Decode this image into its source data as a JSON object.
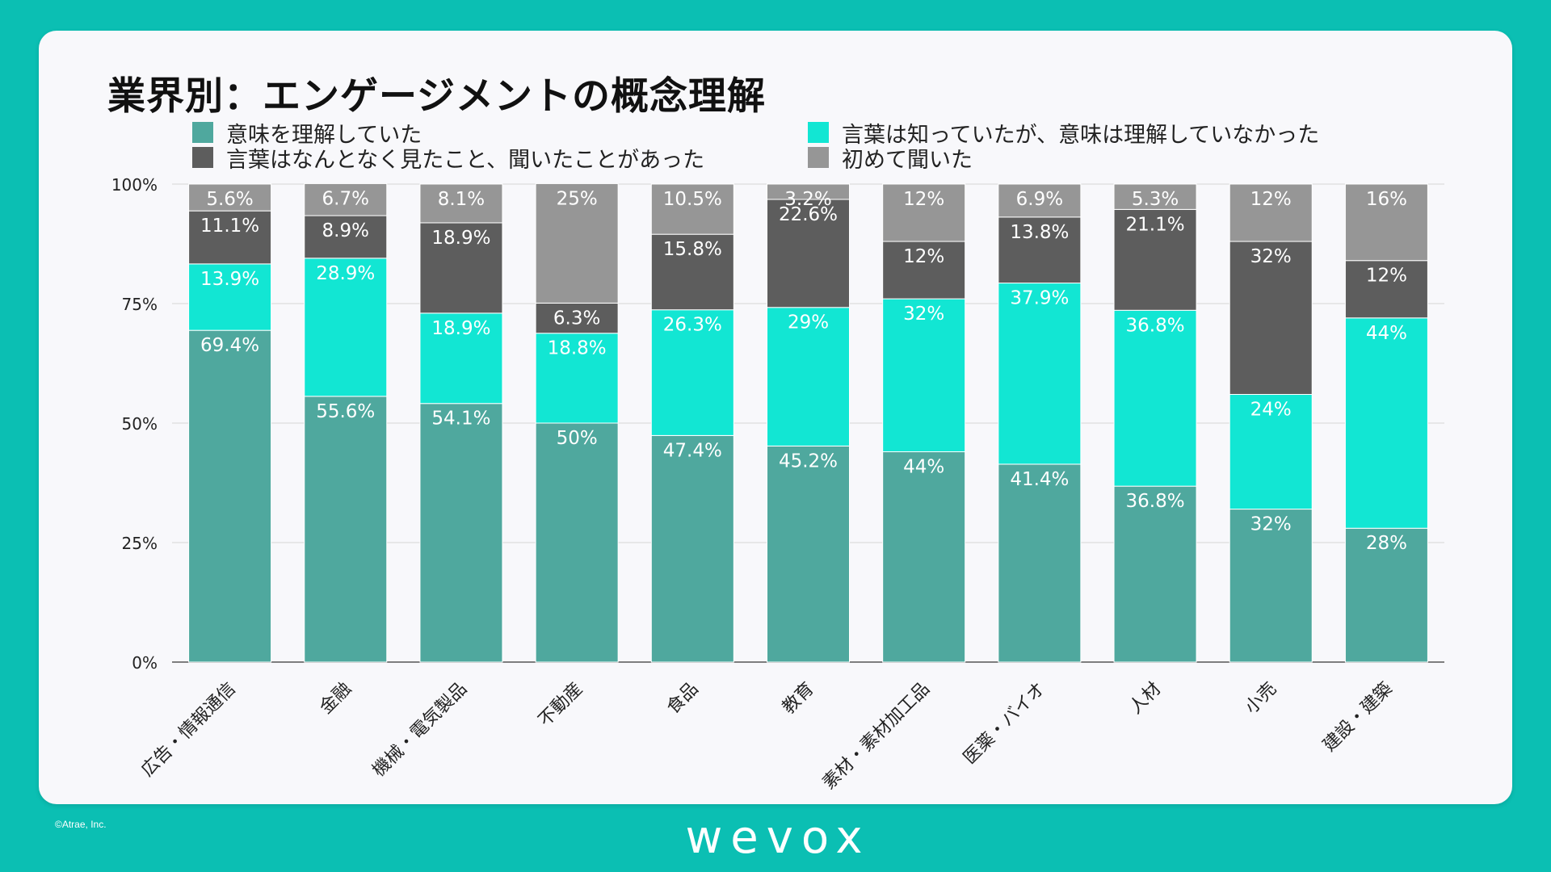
{
  "title": "業界別：エンゲージメントの概念理解",
  "copyright": "©Atrae, Inc.",
  "logo": "wevox",
  "colors": {
    "background": "#0bbfb3",
    "card": "#f8f8fb",
    "understood": "#4fa89e",
    "known_word": "#12e6d3",
    "seen_word": "#5d5d5d",
    "first_time": "#969696"
  },
  "chart_data": {
    "type": "bar",
    "stacked": true,
    "categories": [
      "広告・情報通信",
      "金融",
      "機械・電気製品",
      "不動産",
      "食品",
      "教育",
      "素材・素材加工品",
      "医薬・バイオ",
      "人材",
      "小売",
      "建設・建築"
    ],
    "series": [
      {
        "name": "意味を理解していた",
        "color": "#4fa89e",
        "values": [
          69.4,
          55.6,
          54.1,
          50,
          47.4,
          45.2,
          44,
          41.4,
          36.8,
          32,
          28
        ],
        "labels": [
          "69.4%",
          "55.6%",
          "54.1%",
          "50%",
          "47.4%",
          "45.2%",
          "44%",
          "41.4%",
          "36.8%",
          "32%",
          "28%"
        ]
      },
      {
        "name": "言葉は知っていたが、意味は理解していなかった",
        "color": "#12e6d3",
        "values": [
          13.9,
          28.9,
          18.9,
          18.8,
          26.3,
          29,
          32,
          37.9,
          36.8,
          24,
          44
        ],
        "labels": [
          "13.9%",
          "28.9%",
          "18.9%",
          "18.8%",
          "26.3%",
          "29%",
          "32%",
          "37.9%",
          "36.8%",
          "24%",
          "44%"
        ]
      },
      {
        "name": "言葉はなんとなく見たこと、聞いたことがあった",
        "color": "#5d5d5d",
        "values": [
          11.1,
          8.9,
          18.9,
          6.3,
          15.8,
          22.6,
          12,
          13.8,
          21.1,
          32,
          12
        ],
        "labels": [
          "11.1%",
          "8.9%",
          "18.9%",
          "6.3%",
          "15.8%",
          "22.6%",
          "12%",
          "13.8%",
          "21.1%",
          "32%",
          "12%"
        ]
      },
      {
        "name": "初めて聞いた",
        "color": "#969696",
        "values": [
          5.6,
          6.7,
          8.1,
          25,
          10.5,
          3.2,
          12,
          6.9,
          5.3,
          12,
          16
        ],
        "labels": [
          "5.6%",
          "6.7%",
          "8.1%",
          "25%",
          "10.5%",
          "3.2%",
          "12%",
          "6.9%",
          "5.3%",
          "12%",
          "16%"
        ]
      }
    ],
    "yticks": [
      "0%",
      "25%",
      "50%",
      "75%",
      "100%"
    ],
    "ylim": [
      0,
      100
    ],
    "legend_position": "top",
    "grid": true
  }
}
